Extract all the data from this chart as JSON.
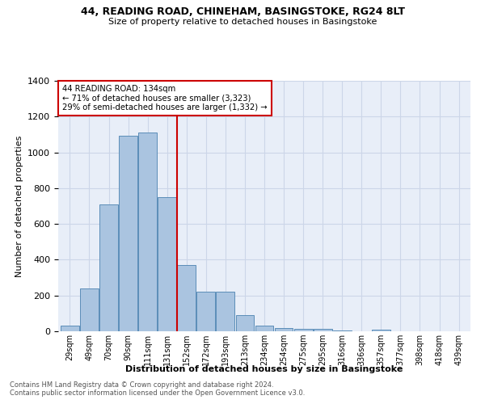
{
  "title": "44, READING ROAD, CHINEHAM, BASINGSTOKE, RG24 8LT",
  "subtitle": "Size of property relative to detached houses in Basingstoke",
  "xlabel": "Distribution of detached houses by size in Basingstoke",
  "ylabel": "Number of detached properties",
  "bar_labels": [
    "29sqm",
    "49sqm",
    "70sqm",
    "90sqm",
    "111sqm",
    "131sqm",
    "152sqm",
    "172sqm",
    "193sqm",
    "213sqm",
    "234sqm",
    "254sqm",
    "275sqm",
    "295sqm",
    "316sqm",
    "336sqm",
    "357sqm",
    "377sqm",
    "398sqm",
    "418sqm",
    "439sqm"
  ],
  "bar_values": [
    30,
    240,
    710,
    1095,
    1110,
    750,
    370,
    220,
    220,
    90,
    30,
    20,
    15,
    15,
    5,
    0,
    10,
    0,
    0,
    0,
    0
  ],
  "bar_color": "#aac4e0",
  "bar_edge_color": "#5b8db8",
  "vline_color": "#cc0000",
  "annotation_text": "44 READING ROAD: 134sqm\n← 71% of detached houses are smaller (3,323)\n29% of semi-detached houses are larger (1,332) →",
  "annotation_box_color": "#ffffff",
  "annotation_box_edge": "#cc0000",
  "ylim": [
    0,
    1400
  ],
  "yticks": [
    0,
    200,
    400,
    600,
    800,
    1000,
    1200,
    1400
  ],
  "grid_color": "#ccd6e8",
  "bg_color": "#e8eef8",
  "footnote1": "Contains HM Land Registry data © Crown copyright and database right 2024.",
  "footnote2": "Contains public sector information licensed under the Open Government Licence v3.0."
}
